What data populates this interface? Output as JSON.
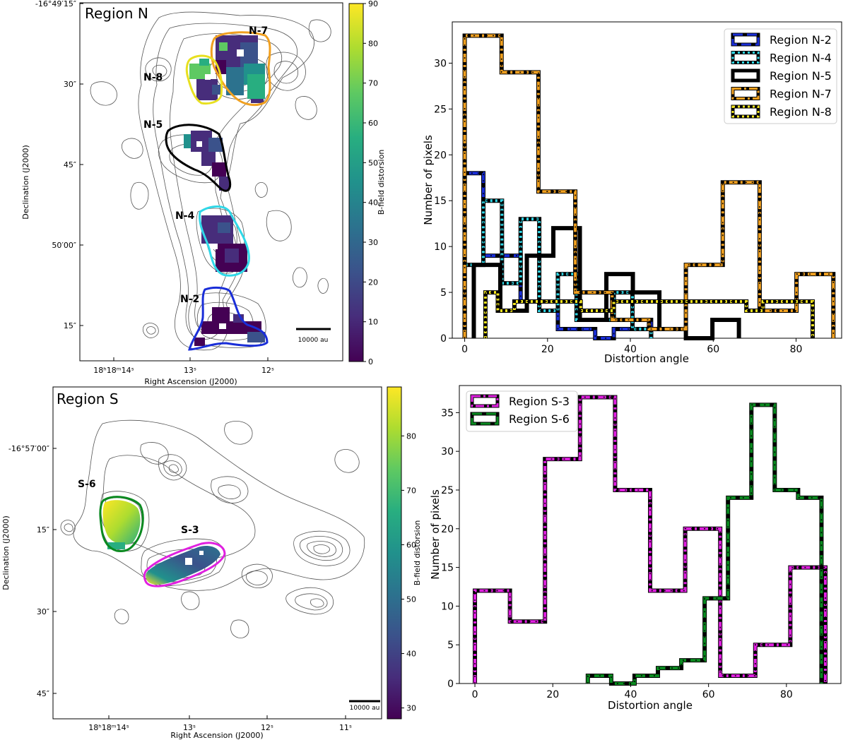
{
  "chart_data": [
    {
      "type": "heatmap",
      "title": "Region N",
      "xlabel": "Right Ascension (J2000)",
      "ylabel": "Declination (J2000)",
      "colorbar_label": "B-field distorsion",
      "colorbar_ticks": [
        0,
        10,
        20,
        30,
        40,
        50,
        60,
        70,
        80,
        90
      ],
      "clim": [
        0,
        90
      ],
      "x_ticks": [
        {
          "label": "18ʰ18ᵐ14ˢ"
        },
        {
          "label": "13ˢ"
        },
        {
          "label": "12ˢ"
        }
      ],
      "y_ticks": [
        {
          "label": "-16°49′15″"
        },
        {
          "label": "30″"
        },
        {
          "label": "45″"
        },
        {
          "label": "50′00″"
        },
        {
          "label": "15″"
        }
      ],
      "scalebar": "10000 au",
      "regions": [
        {
          "name": "N-7",
          "color": "#f0a020"
        },
        {
          "name": "N-8",
          "color": "#e8e020"
        },
        {
          "name": "N-5",
          "color": "#000000"
        },
        {
          "name": "N-4",
          "color": "#30d8e8"
        },
        {
          "name": "N-2",
          "color": "#1a2ed8"
        }
      ]
    },
    {
      "type": "line",
      "subtype": "step-histogram",
      "xlabel": "Distortion angle",
      "ylabel": "Number of pixels",
      "xlim": [
        -3,
        91
      ],
      "ylim": [
        0,
        34.5
      ],
      "x_ticks": [
        0,
        20,
        40,
        60,
        80
      ],
      "y_ticks": [
        0,
        5,
        10,
        15,
        20,
        25,
        30
      ],
      "legend_position": "top-right",
      "series": [
        {
          "name": "Region N-2",
          "color": "#1a2ed8",
          "dash": "dashed",
          "edges": [
            0,
            4.5,
            9,
            13.5,
            18,
            22.5,
            27,
            31.5,
            36,
            40.5,
            45
          ],
          "values": [
            18,
            9,
            9,
            4,
            3,
            1,
            1,
            0,
            1,
            2
          ]
        },
        {
          "name": "Region N-4",
          "color": "#30d8e8",
          "dash": "dotted",
          "edges": [
            0,
            4.5,
            9,
            13.5,
            18,
            22.5,
            27,
            31.5,
            36,
            40.5,
            45
          ],
          "values": [
            8,
            15,
            6,
            13,
            3,
            7,
            2,
            2,
            5,
            1
          ]
        },
        {
          "name": "Region N-5",
          "color": "#000000",
          "dash": "solid",
          "edges": [
            2.2,
            8.6,
            15,
            21.4,
            27.8,
            34.2,
            40.6,
            47,
            53.4,
            59.8,
            66.2
          ],
          "values": [
            8,
            3,
            9,
            12,
            2,
            7,
            5,
            1,
            0,
            2
          ]
        },
        {
          "name": "Region N-7",
          "color": "#f0a020",
          "dash": "dash-dot",
          "edges": [
            0,
            8.9,
            17.8,
            26.7,
            35.6,
            44.5,
            53.4,
            62.3,
            71.2,
            80.1,
            89
          ],
          "values": [
            33,
            29,
            16,
            5,
            2,
            1,
            8,
            17,
            3,
            7
          ]
        },
        {
          "name": "Region N-8",
          "color": "#f4e620",
          "dash": "dotted",
          "edges": [
            5,
            8,
            12,
            16,
            20,
            24,
            28,
            32,
            36,
            40,
            44,
            48,
            52,
            56,
            60,
            64,
            68,
            72,
            76,
            80,
            84
          ],
          "values": [
            5,
            3,
            4,
            4,
            4,
            4,
            3,
            3,
            4,
            4,
            4,
            4,
            4,
            4,
            4,
            4,
            3,
            4,
            4,
            4
          ]
        }
      ]
    },
    {
      "type": "heatmap",
      "title": "Region S",
      "xlabel": "Right Ascension (J2000)",
      "ylabel": "Declination (J2000)",
      "colorbar_label": "B-field distorsion",
      "colorbar_ticks": [
        30,
        40,
        50,
        60,
        70,
        80
      ],
      "clim": [
        28,
        89
      ],
      "x_ticks": [
        {
          "label": "18ʰ18ᵐ14ˢ"
        },
        {
          "label": "13ˢ"
        },
        {
          "label": "12ˢ"
        },
        {
          "label": "11ˢ"
        }
      ],
      "y_ticks": [
        {
          "label": "-16°57′00″"
        },
        {
          "label": "15″"
        },
        {
          "label": "30″"
        },
        {
          "label": "45″"
        }
      ],
      "scalebar": "10000 au",
      "regions": [
        {
          "name": "S-6",
          "color": "#0a8a20"
        },
        {
          "name": "S-3",
          "color": "#e020e0"
        }
      ]
    },
    {
      "type": "line",
      "subtype": "step-histogram",
      "xlabel": "Distortion angle",
      "ylabel": "Number of pixels",
      "xlim": [
        -4,
        94
      ],
      "ylim": [
        0,
        38.5
      ],
      "x_ticks": [
        0,
        20,
        40,
        60,
        80
      ],
      "y_ticks": [
        0,
        5,
        10,
        15,
        20,
        25,
        30,
        35
      ],
      "legend_position": "top-left",
      "series": [
        {
          "name": "Region S-3",
          "color": "#e020e0",
          "dash": "dash-dot",
          "edges": [
            0,
            9,
            18,
            27,
            36,
            45,
            54,
            63,
            72,
            81,
            90
          ],
          "values": [
            12,
            8,
            29,
            37,
            25,
            12,
            20,
            1,
            5,
            15
          ]
        },
        {
          "name": "Region S-6",
          "color": "#0a8a20",
          "dash": "dashed",
          "edges": [
            29,
            35,
            41,
            47,
            53,
            59,
            65,
            71,
            77,
            83,
            89
          ],
          "values": [
            1,
            0,
            1,
            2,
            3,
            11,
            24,
            36,
            25,
            24
          ]
        }
      ]
    }
  ]
}
